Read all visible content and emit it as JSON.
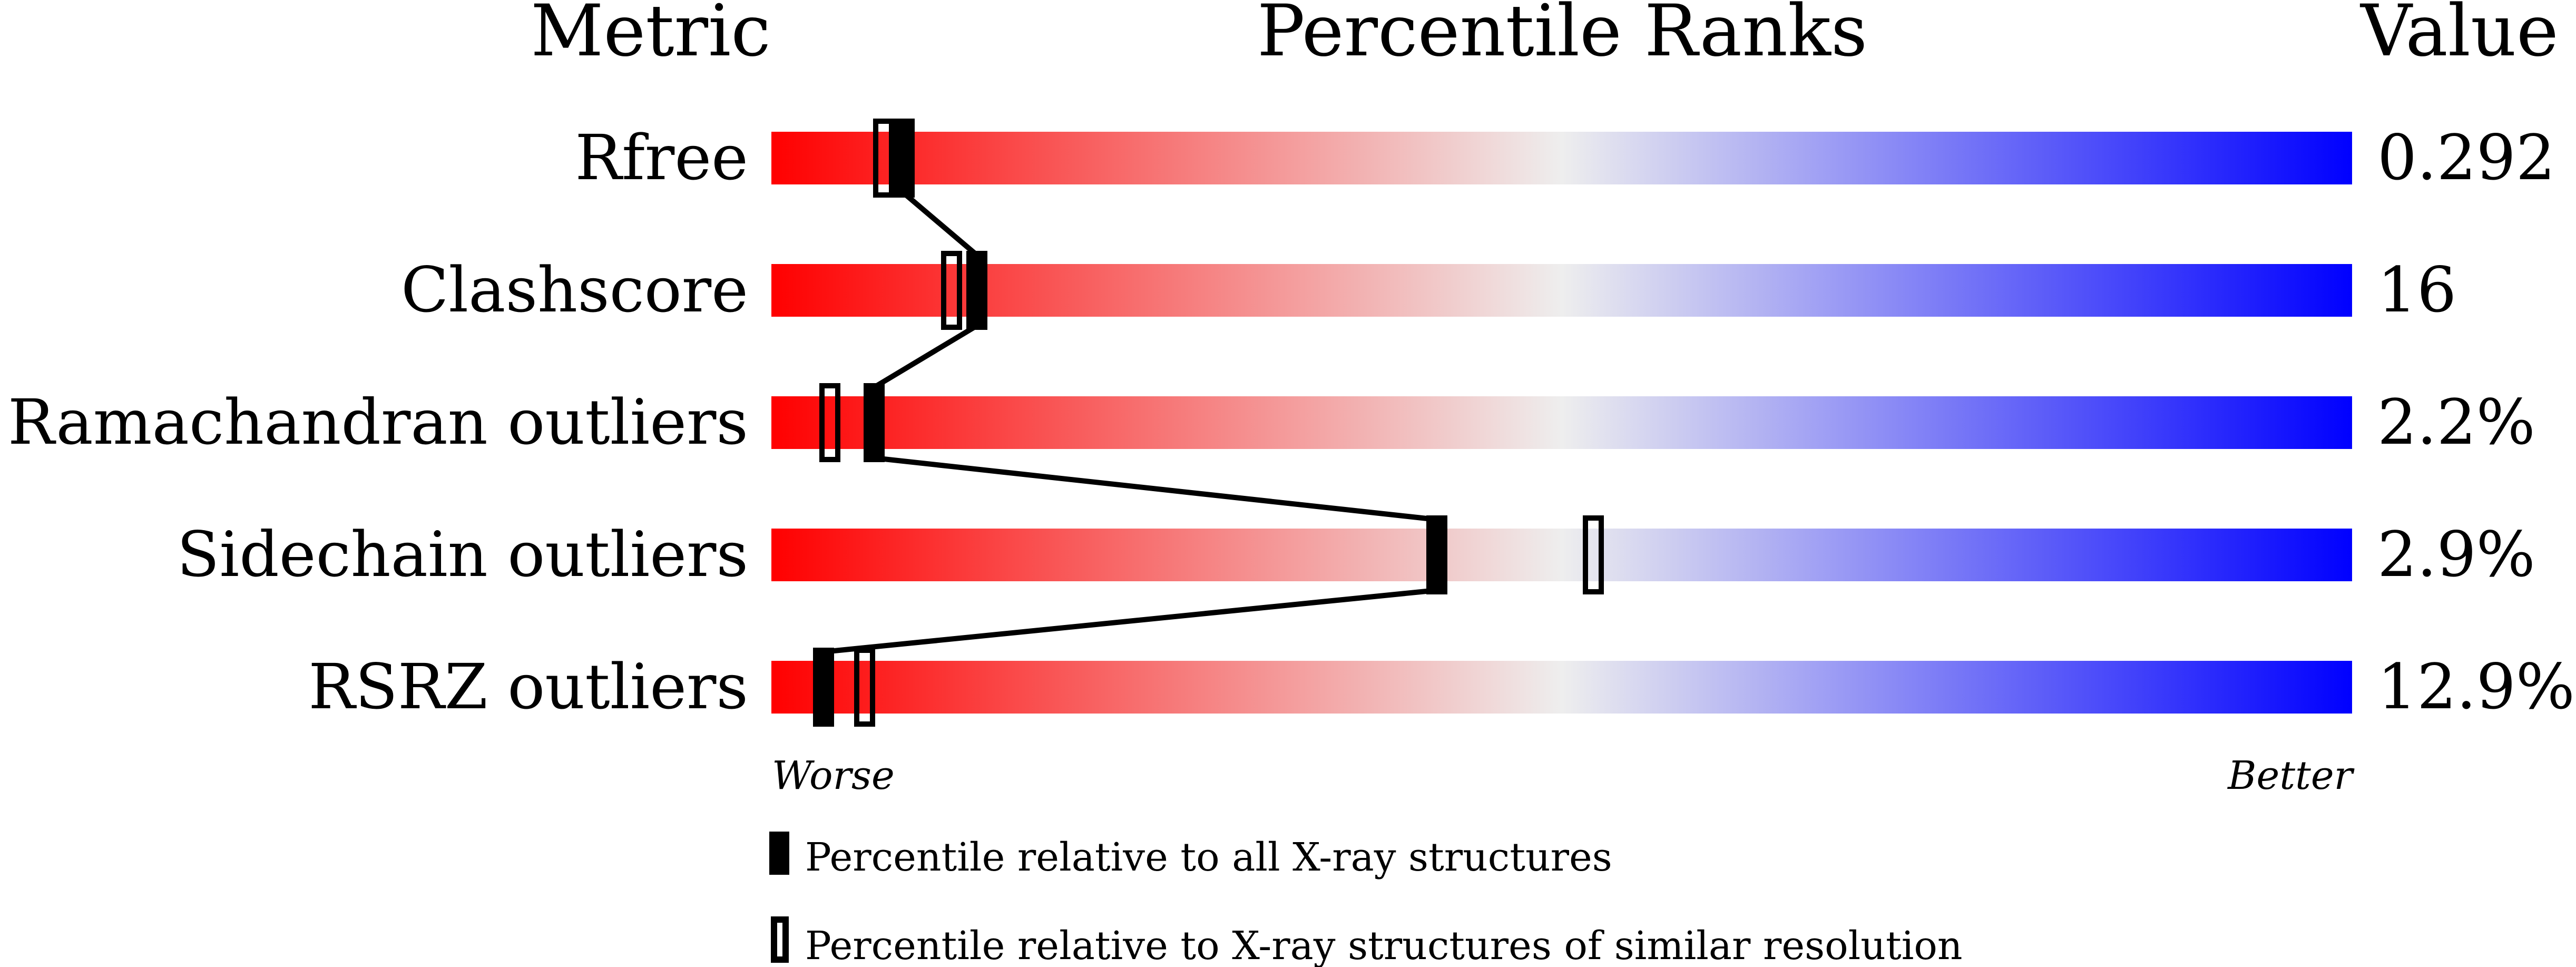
{
  "chart_data": {
    "type": "percentile-slider",
    "headers": {
      "metric": "Metric",
      "ranks": "Percentile Ranks",
      "value": "Value"
    },
    "axis": {
      "left": "Worse",
      "right": "Better",
      "range": [
        0,
        100
      ]
    },
    "gradient_colors": {
      "worse": "#ff0000",
      "middle": "#eeeeee",
      "better": "#0000ff"
    },
    "metrics": [
      {
        "name": "Rfree",
        "value": "0.292",
        "percentile_all": 8.4,
        "percentile_similar": 7.1
      },
      {
        "name": "Clashscore",
        "value": "16",
        "percentile_all": 13.0,
        "percentile_similar": 11.4
      },
      {
        "name": "Ramachandran outliers",
        "value": "2.2%",
        "percentile_all": 6.5,
        "percentile_similar": 3.7
      },
      {
        "name": "Sidechain outliers",
        "value": "2.9%",
        "percentile_all": 42.1,
        "percentile_similar": 52.0
      },
      {
        "name": "RSRZ outliers",
        "value": "12.9%",
        "percentile_all": 3.3,
        "percentile_similar": 5.9
      }
    ],
    "legend": [
      {
        "marker": "filled",
        "label": "Percentile relative to all X-ray structures"
      },
      {
        "marker": "open",
        "label": "Percentile relative to X-ray structures of similar resolution"
      }
    ]
  }
}
